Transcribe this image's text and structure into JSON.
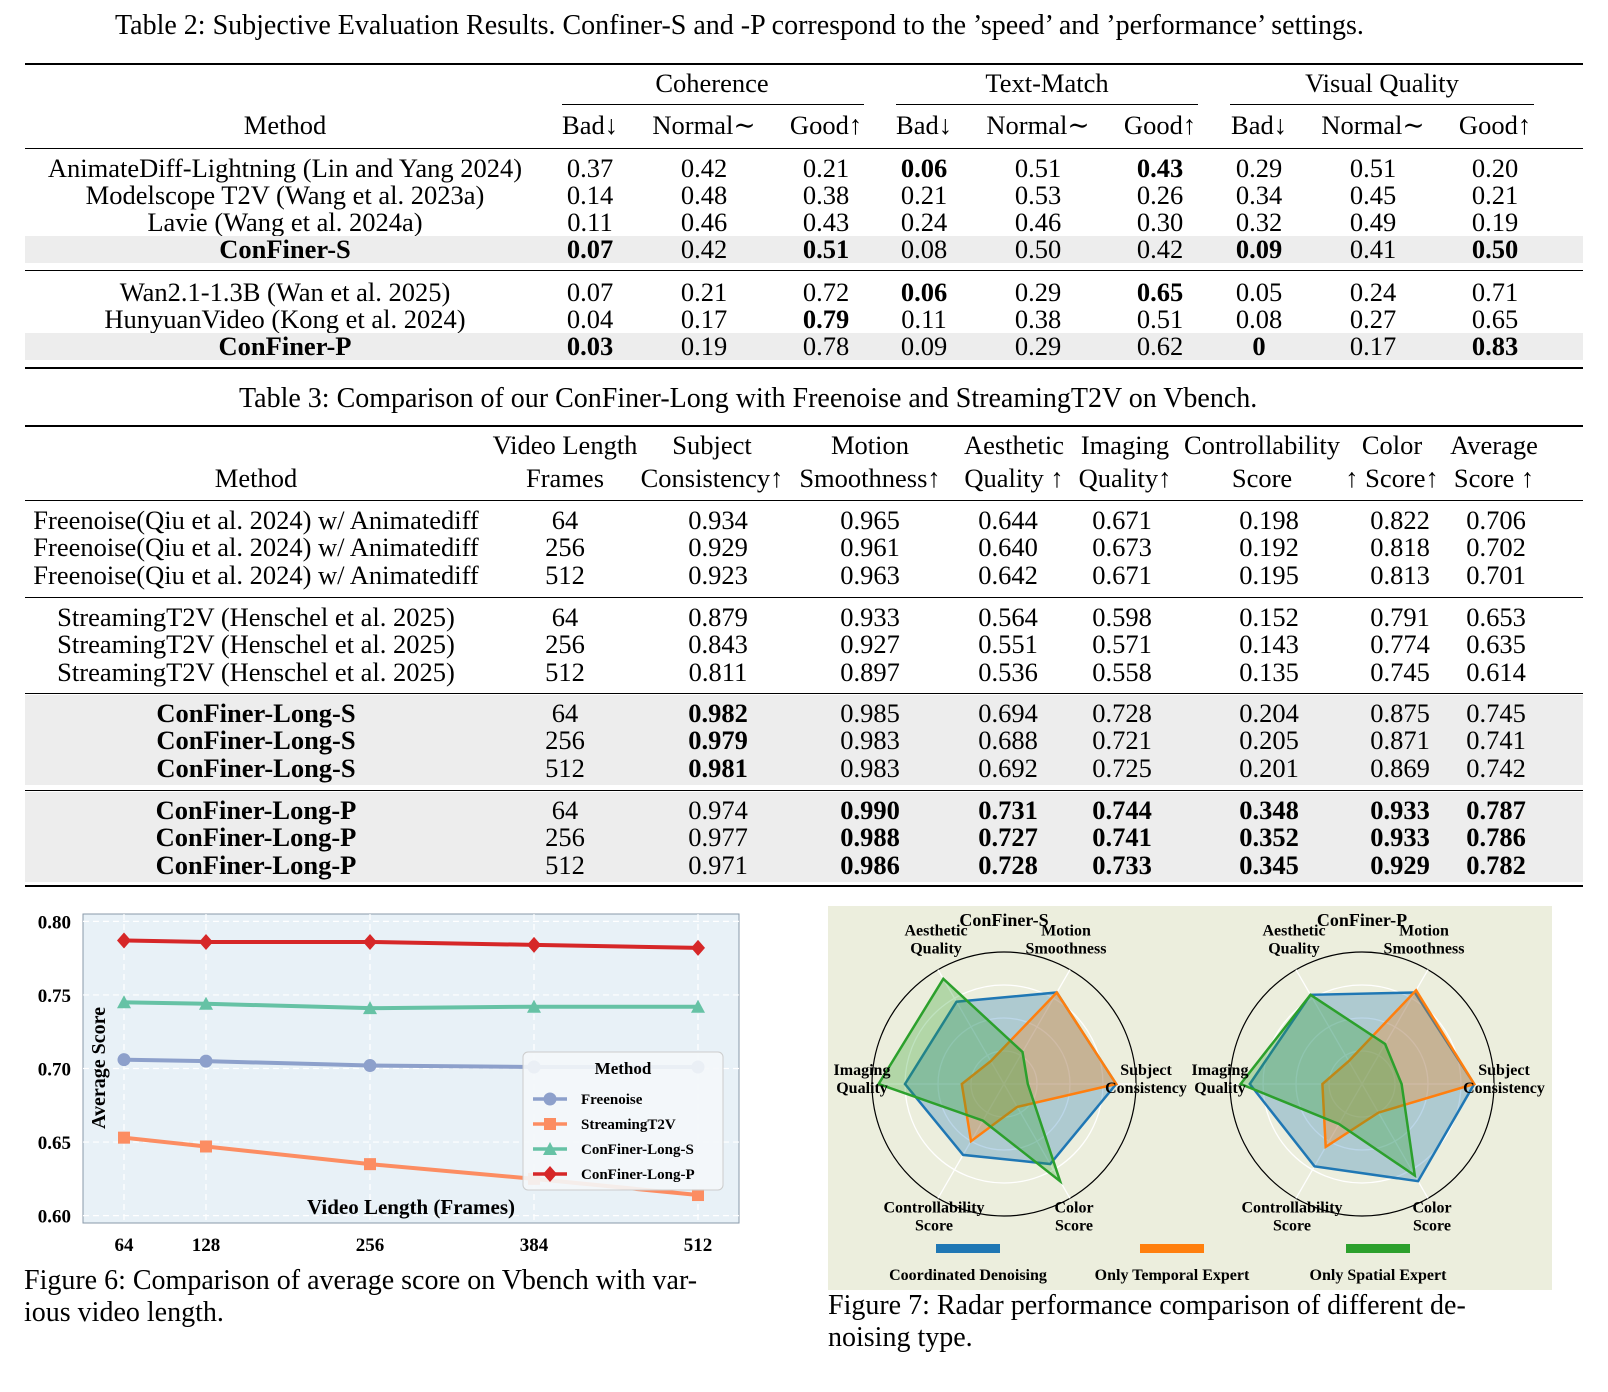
{
  "table2": {
    "caption": "Table 2: Subjective Evaluation Results. Confiner-S and -P correspond to the ’speed’ and ’performance’ settings.",
    "method_header": "Method",
    "groups": [
      "Coherence",
      "Text-Match",
      "Visual Quality"
    ],
    "subheaders": [
      "Bad↓",
      "Normal∼",
      "Good↑"
    ],
    "blocks": [
      [
        {
          "method": "AnimateDiff-Lightning (Lin and Yang 2024)",
          "values": [
            "0.37",
            "0.42",
            "0.21",
            "0.06",
            "0.51",
            "0.43",
            "0.29",
            "0.51",
            "0.20"
          ],
          "bold": [
            3,
            5
          ]
        },
        {
          "method": "Modelscope T2V (Wang et al. 2023a)",
          "values": [
            "0.14",
            "0.48",
            "0.38",
            "0.21",
            "0.53",
            "0.26",
            "0.34",
            "0.45",
            "0.21"
          ],
          "bold": []
        },
        {
          "method": "Lavie (Wang et al. 2024a)",
          "values": [
            "0.11",
            "0.46",
            "0.43",
            "0.24",
            "0.46",
            "0.30",
            "0.32",
            "0.49",
            "0.19"
          ],
          "bold": []
        },
        {
          "method": "ConFiner-S",
          "values": [
            "0.07",
            "0.42",
            "0.51",
            "0.08",
            "0.50",
            "0.42",
            "0.09",
            "0.41",
            "0.50"
          ],
          "bold": [
            0,
            2,
            6,
            8
          ],
          "method_bold": true,
          "shaded": true
        }
      ],
      [
        {
          "method": "Wan2.1-1.3B (Wan et al. 2025)",
          "values": [
            "0.07",
            "0.21",
            "0.72",
            "0.06",
            "0.29",
            "0.65",
            "0.05",
            "0.24",
            "0.71"
          ],
          "bold": [
            3,
            5
          ]
        },
        {
          "method": "HunyuanVideo (Kong et al. 2024)",
          "values": [
            "0.04",
            "0.17",
            "0.79",
            "0.11",
            "0.38",
            "0.51",
            "0.08",
            "0.27",
            "0.65"
          ],
          "bold": [
            2
          ]
        },
        {
          "method": "ConFiner-P",
          "values": [
            "0.03",
            "0.19",
            "0.78",
            "0.09",
            "0.29",
            "0.62",
            "0",
            "0.17",
            "0.83"
          ],
          "bold": [
            0,
            6,
            8
          ],
          "method_bold": true,
          "shaded": true
        }
      ]
    ]
  },
  "table3": {
    "caption": "Table 3: Comparison of our ConFiner-Long with Freenoise and StreamingT2V on Vbench.",
    "headers": [
      {
        "line1": "",
        "line2": "Method"
      },
      {
        "line1": "Video Length",
        "line2": "Frames"
      },
      {
        "line1": "Subject",
        "line2": "Consistency↑"
      },
      {
        "line1": "Motion",
        "line2": "Smoothness↑"
      },
      {
        "line1": "Aesthetic",
        "line2": "Quality ↑"
      },
      {
        "line1": "Imaging",
        "line2": "Quality↑"
      },
      {
        "line1": "Controllability",
        "line2": "Score"
      },
      {
        "line1": "Color",
        "line2": "↑ Score↑"
      },
      {
        "line1": "Average",
        "line2": "Score ↑"
      }
    ],
    "blocks": [
      {
        "shaded": false,
        "rows": [
          {
            "method": "Freenoise(Qiu et al. 2024) w/ Animatediff",
            "values": [
              "64",
              "0.934",
              "0.965",
              "0.644",
              "0.671",
              "0.198",
              "0.822",
              "0.706"
            ],
            "bold": []
          },
          {
            "method": "Freenoise(Qiu et al. 2024) w/ Animatediff",
            "values": [
              "256",
              "0.929",
              "0.961",
              "0.640",
              "0.673",
              "0.192",
              "0.818",
              "0.702"
            ],
            "bold": []
          },
          {
            "method": "Freenoise(Qiu et al. 2024) w/ Animatediff",
            "values": [
              "512",
              "0.923",
              "0.963",
              "0.642",
              "0.671",
              "0.195",
              "0.813",
              "0.701"
            ],
            "bold": []
          }
        ]
      },
      {
        "shaded": false,
        "rows": [
          {
            "method": "StreamingT2V (Henschel et al. 2025)",
            "values": [
              "64",
              "0.879",
              "0.933",
              "0.564",
              "0.598",
              "0.152",
              "0.791",
              "0.653"
            ],
            "bold": []
          },
          {
            "method": "StreamingT2V (Henschel et al. 2025)",
            "values": [
              "256",
              "0.843",
              "0.927",
              "0.551",
              "0.571",
              "0.143",
              "0.774",
              "0.635"
            ],
            "bold": []
          },
          {
            "method": "StreamingT2V (Henschel et al. 2025)",
            "values": [
              "512",
              "0.811",
              "0.897",
              "0.536",
              "0.558",
              "0.135",
              "0.745",
              "0.614"
            ],
            "bold": []
          }
        ]
      },
      {
        "shaded": true,
        "rows": [
          {
            "method": "ConFiner-Long-S",
            "values": [
              "64",
              "0.982",
              "0.985",
              "0.694",
              "0.728",
              "0.204",
              "0.875",
              "0.745"
            ],
            "bold": [
              1
            ],
            "method_bold": true
          },
          {
            "method": "ConFiner-Long-S",
            "values": [
              "256",
              "0.979",
              "0.983",
              "0.688",
              "0.721",
              "0.205",
              "0.871",
              "0.741"
            ],
            "bold": [
              1
            ],
            "method_bold": true
          },
          {
            "method": "ConFiner-Long-S",
            "values": [
              "512",
              "0.981",
              "0.983",
              "0.692",
              "0.725",
              "0.201",
              "0.869",
              "0.742"
            ],
            "bold": [
              1
            ],
            "method_bold": true
          }
        ]
      },
      {
        "shaded": true,
        "rows": [
          {
            "method": "ConFiner-Long-P",
            "values": [
              "64",
              "0.974",
              "0.990",
              "0.731",
              "0.744",
              "0.348",
              "0.933",
              "0.787"
            ],
            "bold": [
              2,
              3,
              4,
              5,
              6,
              7
            ],
            "method_bold": true
          },
          {
            "method": "ConFiner-Long-P",
            "values": [
              "256",
              "0.977",
              "0.988",
              "0.727",
              "0.741",
              "0.352",
              "0.933",
              "0.786"
            ],
            "bold": [
              2,
              3,
              4,
              5,
              6,
              7
            ],
            "method_bold": true
          },
          {
            "method": "ConFiner-Long-P",
            "values": [
              "512",
              "0.971",
              "0.986",
              "0.728",
              "0.733",
              "0.345",
              "0.929",
              "0.782"
            ],
            "bold": [
              2,
              3,
              4,
              5,
              6,
              7
            ],
            "method_bold": true
          }
        ]
      }
    ]
  },
  "figure6": {
    "caption_line1": "Figure 6: Comparison of average score on Vbench with var-",
    "caption_line2": "ious video length.",
    "chart_data": {
      "type": "line",
      "xlabel": "Video Length (Frames)",
      "ylabel": "Average Score",
      "x": [
        64,
        128,
        256,
        384,
        512
      ],
      "xticks": [
        "64",
        "128",
        "256",
        "384",
        "512"
      ],
      "ylim": [
        0.595,
        0.805
      ],
      "yticks": [
        "0.60",
        "0.65",
        "0.70",
        "0.75",
        "0.80"
      ],
      "grid": true,
      "legend_title": "Method",
      "legend_placement": "center-right",
      "series": [
        {
          "name": "Freenoise",
          "values": [
            0.706,
            0.705,
            0.702,
            0.701,
            0.701
          ],
          "color": "#8da0cb",
          "marker": "circle"
        },
        {
          "name": "StreamingT2V",
          "values": [
            0.653,
            0.647,
            0.635,
            0.625,
            0.614
          ],
          "color": "#fc8d62",
          "marker": "square"
        },
        {
          "name": "ConFiner-Long-S",
          "values": [
            0.745,
            0.744,
            0.741,
            0.742,
            0.742
          ],
          "color": "#66c2a5",
          "marker": "triangle"
        },
        {
          "name": "ConFiner-Long-P",
          "values": [
            0.787,
            0.786,
            0.786,
            0.784,
            0.782
          ],
          "color": "#d62728",
          "marker": "diamond"
        }
      ]
    }
  },
  "figure7": {
    "caption_line1": "Figure 7: Radar performance comparison of different de-",
    "caption_line2": "noising type.",
    "chart_data": {
      "type": "radar",
      "axes": [
        "Subject Consistency",
        "Motion Smoothness",
        "Aesthetic Quality",
        "Imaging Quality",
        "Controllability Score",
        "Color Score"
      ],
      "axis_labels": [
        [
          "Subject",
          "Consistency"
        ],
        [
          "Motion",
          "Smoothness"
        ],
        [
          "Aesthetic",
          "Quality"
        ],
        [
          "Imaging",
          "Quality"
        ],
        [
          "Controllability",
          "Score"
        ],
        [
          "Color",
          "Score"
        ]
      ],
      "rlim": [
        0,
        1
      ],
      "charts": [
        {
          "title": "ConFiner-S",
          "series": [
            {
              "name": "Coordinated Denoising",
              "values": [
                0.85,
                0.8,
                0.72,
                0.75,
                0.62,
                0.7
              ],
              "color": "#1f77b4"
            },
            {
              "name": "Only Temporal Expert",
              "values": [
                0.85,
                0.8,
                0.2,
                0.32,
                0.5,
                0.2
              ],
              "color": "#ff7f0e"
            },
            {
              "name": "Only Spatial Expert",
              "values": [
                0.18,
                0.28,
                0.92,
                0.95,
                0.32,
                0.85
              ],
              "color": "#2ca02c"
            }
          ]
        },
        {
          "title": "ConFiner-P",
          "series": [
            {
              "name": "Coordinated Denoising",
              "values": [
                0.85,
                0.8,
                0.78,
                0.85,
                0.72,
                0.85
              ],
              "color": "#1f77b4"
            },
            {
              "name": "Only Temporal Expert",
              "values": [
                0.85,
                0.82,
                0.2,
                0.3,
                0.55,
                0.25
              ],
              "color": "#ff7f0e"
            },
            {
              "name": "Only Spatial Expert",
              "values": [
                0.3,
                0.35,
                0.78,
                0.92,
                0.35,
                0.8
              ],
              "color": "#2ca02c"
            }
          ]
        }
      ],
      "legend": [
        "Coordinated Denoising",
        "Only Temporal Expert",
        "Only Spatial Expert"
      ]
    }
  }
}
